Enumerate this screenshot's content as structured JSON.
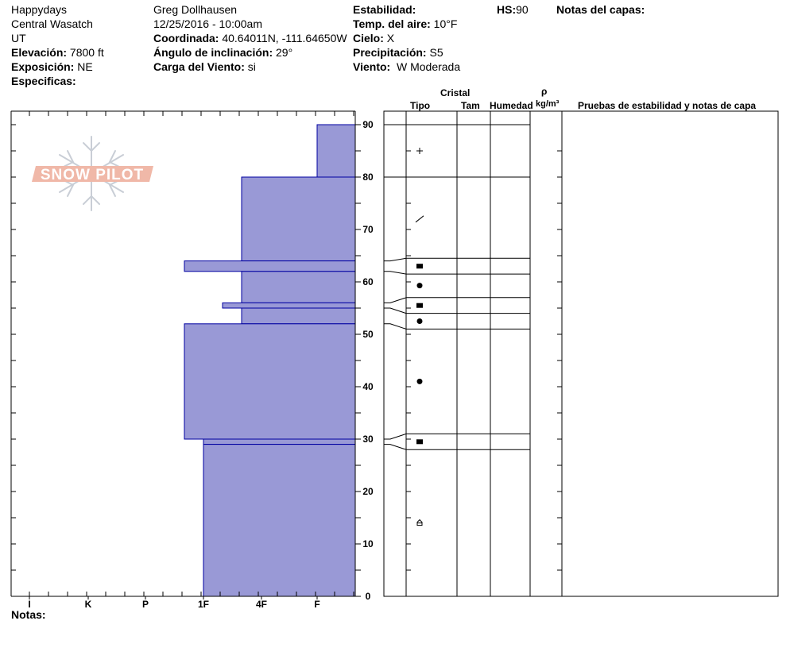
{
  "header": {
    "location": "Happydays",
    "range": "Central Wasatch",
    "state": "UT",
    "elevation_label": "Elevación:",
    "elevation_value": "7800 ft",
    "aspect_label": "Exposición:",
    "aspect_value": "NE",
    "specifics_label": "Especificas:",
    "observer": "Greg Dollhausen",
    "datetime": "12/25/2016 - 10:00am",
    "coord_label": "Coordinada:",
    "coord_value": "40.64011N, -111.64650W",
    "slope_label": "Ángulo de inclinación:",
    "slope_value": "29°",
    "windload_label": "Carga del Viento:",
    "windload_value": "si",
    "stability_label": "Estabilidad:",
    "airtemp_label": "Temp. del aire:",
    "airtemp_value": "10°F",
    "sky_label": "Cielo:",
    "sky_value": "X",
    "precip_label": "Precipitación:",
    "precip_value": "S5",
    "wind_label": "Viento:",
    "wind_value": "W Moderada",
    "hs_label": "HS:",
    "hs_value": "90",
    "layer_notes_label": "Notas del capas:"
  },
  "table_headers": {
    "crystal": "Cristal",
    "type": "Tipo",
    "size": "Tam",
    "humidity": "Humedad",
    "rho": "ρ",
    "density_unit": "kg/m³",
    "tests": "Pruebas de estabilidad y notas de capa"
  },
  "notes_label": "Notas:",
  "logo_text": "SNOW PILOT",
  "colors": {
    "bar_fill": "#9999d6",
    "bar_stroke": "#0000a0",
    "axis": "#000000",
    "logo": "#f0b8a8"
  },
  "chart_data": {
    "type": "bar",
    "orientation": "horizontal",
    "title": "",
    "ylabel": "",
    "ylim": [
      0,
      90
    ],
    "y_ticks": [
      0,
      10,
      20,
      30,
      40,
      50,
      60,
      70,
      80,
      90
    ],
    "hardness_scale": [
      "I",
      "K",
      "P",
      "1F",
      "4F",
      "F"
    ],
    "layers": [
      {
        "top": 90,
        "bottom": 80,
        "hardness": "F"
      },
      {
        "top": 80,
        "bottom": 64,
        "hardness": "4F"
      },
      {
        "top": 64,
        "bottom": 62,
        "hardness": "1F"
      },
      {
        "top": 62,
        "bottom": 56,
        "hardness": "4F"
      },
      {
        "top": 56,
        "bottom": 55,
        "hardness": "1F"
      },
      {
        "top": 55,
        "bottom": 52,
        "hardness": "4F"
      },
      {
        "top": 52,
        "bottom": 30,
        "hardness": "1F"
      },
      {
        "top": 30,
        "bottom": 29,
        "hardness": "1F"
      },
      {
        "top": 29,
        "bottom": 0,
        "hardness": "1F"
      }
    ],
    "layer_rows": [
      {
        "top": 90,
        "bottom": 80,
        "symbol": "+",
        "at": 85
      },
      {
        "top": 80,
        "bottom": 64.5,
        "symbol": "/",
        "at": 72
      },
      {
        "top": 64.5,
        "bottom": 61.5,
        "symbol": "■",
        "at": 63
      },
      {
        "top": 61.5,
        "bottom": 57,
        "symbol": "●",
        "at": 59.3
      },
      {
        "top": 57,
        "bottom": 54,
        "symbol": "■",
        "at": 55.5
      },
      {
        "top": 54,
        "bottom": 51,
        "symbol": "●",
        "at": 52.5
      },
      {
        "top": 51,
        "bottom": 31,
        "symbol": "●",
        "at": 41
      },
      {
        "top": 31,
        "bottom": 28,
        "symbol": "■",
        "at": 29.5
      },
      {
        "top": 28,
        "bottom": 0,
        "symbol": "⌂",
        "at": 14
      }
    ]
  }
}
